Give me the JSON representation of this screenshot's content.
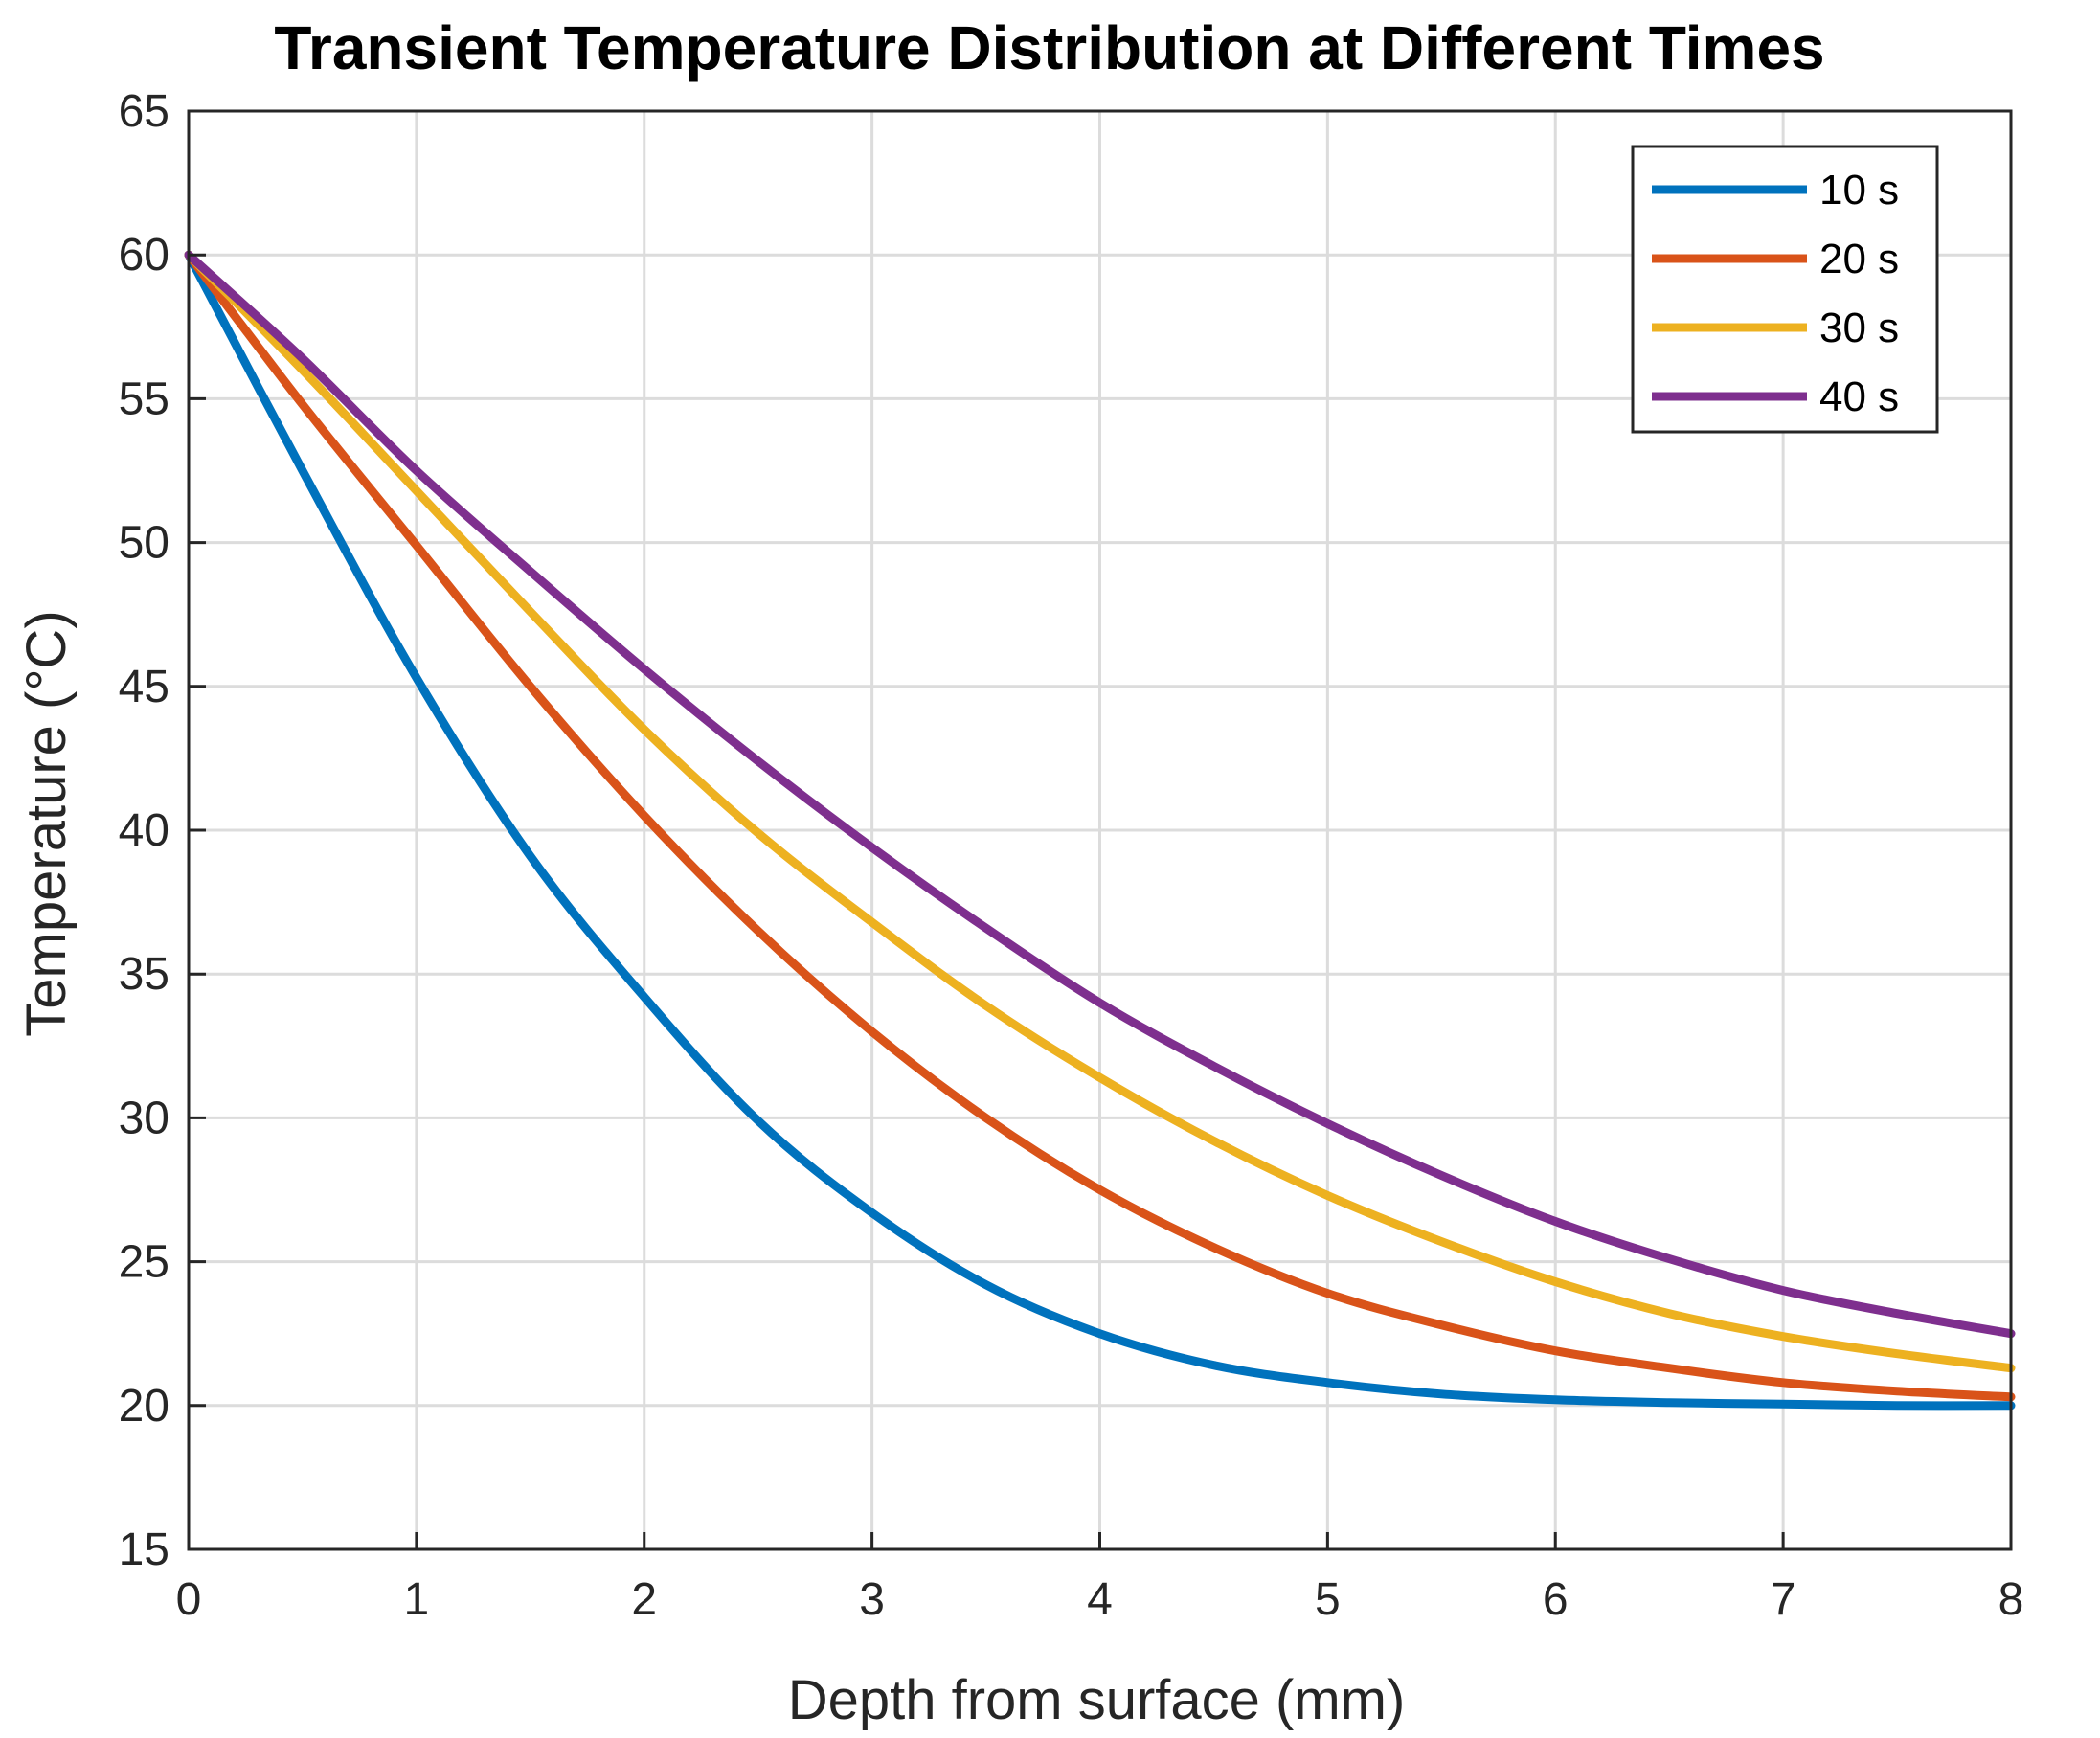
{
  "chart_data": {
    "type": "line",
    "title": "Transient Temperature Distribution at Different Times",
    "xlabel": "Depth from surface (mm)",
    "ylabel": "Temperature (°C)",
    "xlim": [
      0,
      8
    ],
    "ylim": [
      15,
      65
    ],
    "xticks": [
      0,
      1,
      2,
      3,
      4,
      5,
      6,
      7,
      8
    ],
    "yticks": [
      15,
      20,
      25,
      30,
      35,
      40,
      45,
      50,
      55,
      60,
      65
    ],
    "grid": true,
    "legend_position": "top-right",
    "x": [
      0,
      0.5,
      1,
      1.5,
      2,
      2.5,
      3,
      3.5,
      4,
      4.5,
      5,
      5.5,
      6,
      6.5,
      7,
      7.5,
      8
    ],
    "series": [
      {
        "name": "10 s",
        "color": "#0072BD",
        "values": [
          60,
          52.5,
          45.3,
          39.1,
          34.2,
          29.9,
          26.7,
          24.2,
          22.5,
          21.4,
          20.8,
          20.4,
          20.2,
          20.1,
          20.05,
          20.0,
          20.0
        ]
      },
      {
        "name": "20 s",
        "color": "#D95319",
        "values": [
          60,
          54.8,
          49.9,
          45.0,
          40.5,
          36.5,
          33.0,
          30.0,
          27.5,
          25.5,
          23.9,
          22.8,
          21.9,
          21.3,
          20.8,
          20.5,
          20.3
        ]
      },
      {
        "name": "30 s",
        "color": "#EDB120",
        "values": [
          60,
          56.0,
          51.8,
          47.6,
          43.5,
          39.9,
          36.8,
          33.9,
          31.4,
          29.2,
          27.3,
          25.7,
          24.3,
          23.2,
          22.4,
          21.8,
          21.3
        ]
      },
      {
        "name": "40 s",
        "color": "#7E2F8E",
        "values": [
          60,
          56.4,
          52.5,
          49.0,
          45.6,
          42.4,
          39.4,
          36.6,
          34.0,
          31.8,
          29.8,
          28.0,
          26.4,
          25.1,
          24.0,
          23.2,
          22.5
        ]
      }
    ]
  }
}
